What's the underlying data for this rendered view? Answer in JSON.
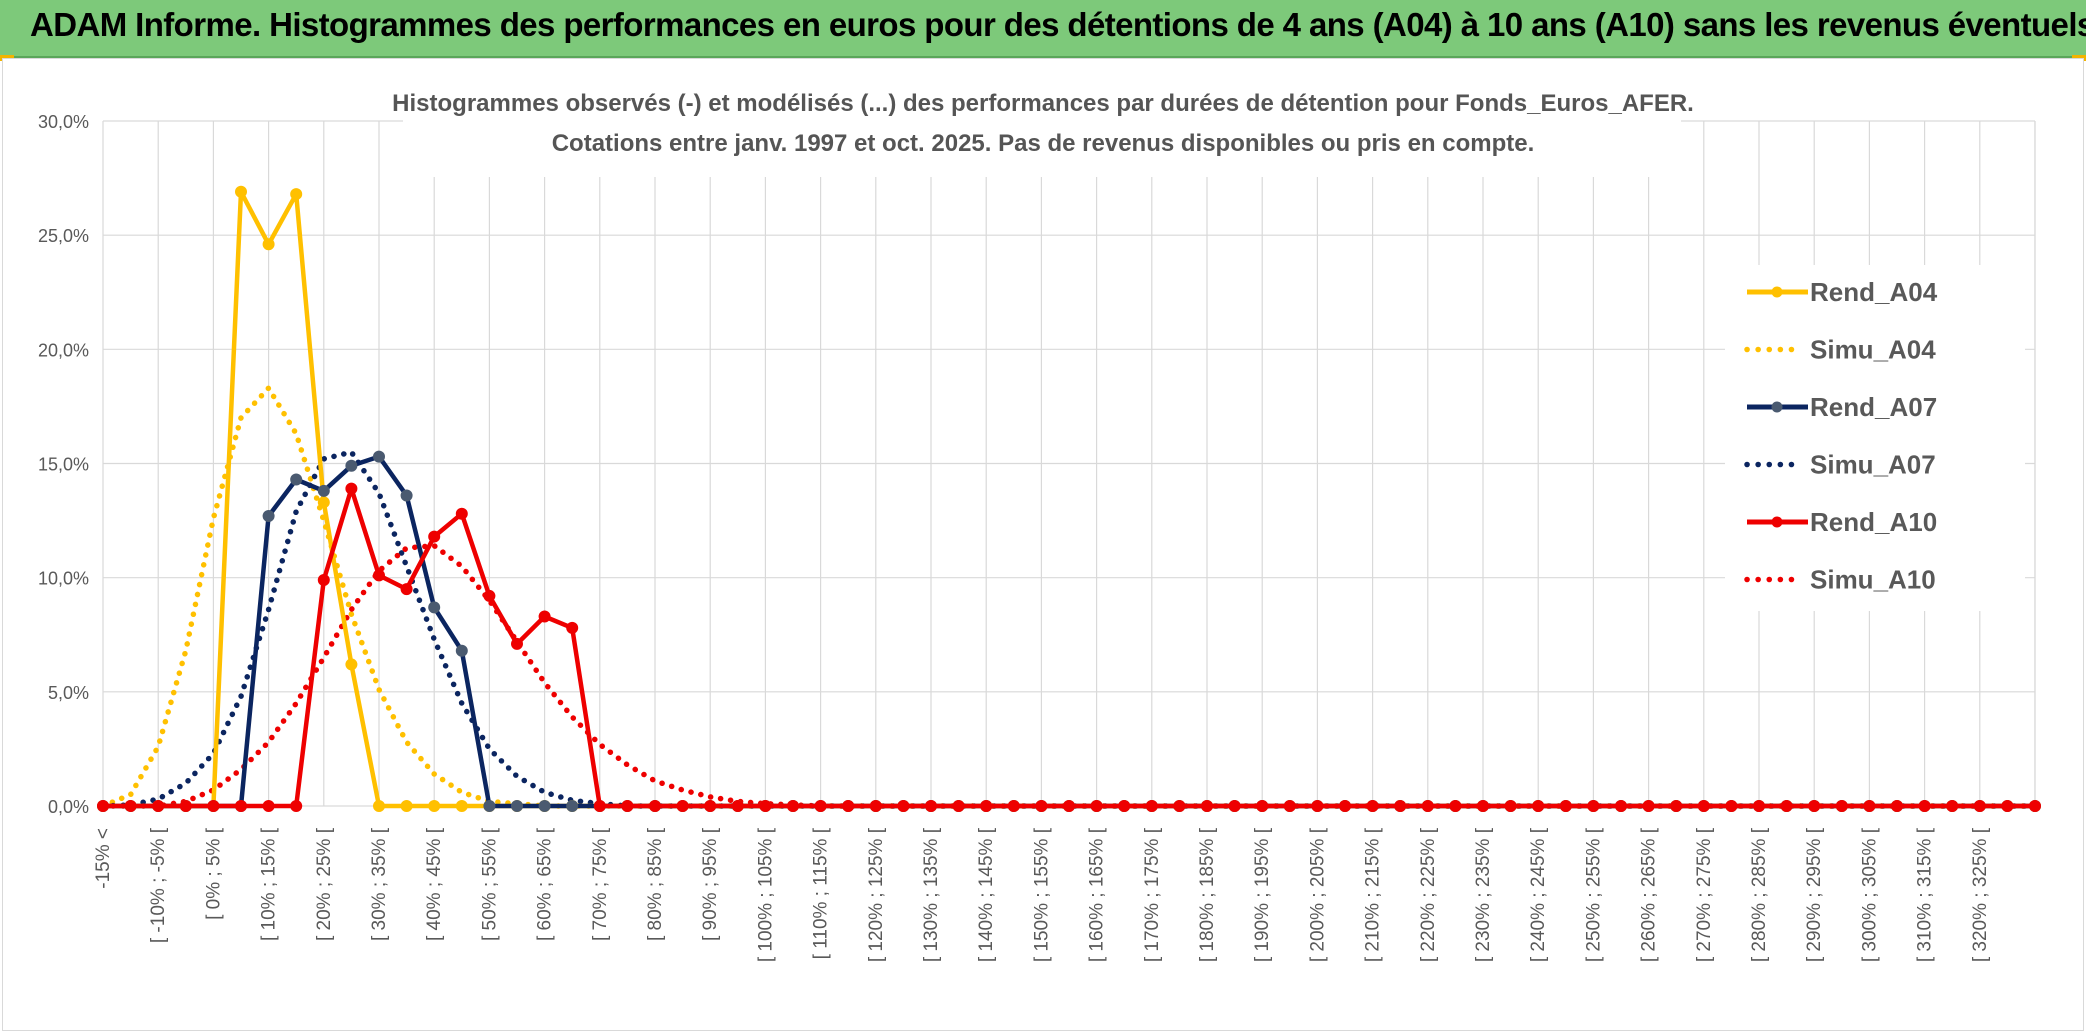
{
  "banner": {
    "title": "ADAM Informe. Histogrammes des performances en euros pour des détentions de 4 ans (A04) à 10 ans (A10) sans les revenus éventuels"
  },
  "colors": {
    "banner_bg": "#7dc97a",
    "gold": "#FFC000",
    "navy": "#0B2560",
    "red": "#EE0000",
    "navy_marker": "#4a5a70"
  },
  "chart_data": {
    "type": "line",
    "title": "Histogrammes observés (-) et modélisés (...) des performances par durées de détention pour Fonds_Euros_AFER.",
    "subtitle": "Cotations entre janv. 1997 et oct. 2025. Pas de revenus disponibles ou pris en compte.",
    "xlabel": "",
    "ylabel": "",
    "ylim": [
      0,
      30
    ],
    "yticks": [
      0,
      5,
      10,
      15,
      20,
      25,
      30
    ],
    "ytick_labels": [
      "0,0%",
      "5,0%",
      "10,0%",
      "15,0%",
      "20,0%",
      "25,0%",
      "30,0%"
    ],
    "grid": true,
    "legend_position": "right",
    "x": [
      "-15% <",
      "[ -15% ; -10% [",
      "[ -10% ; -5% [",
      "[ -5% ; 0% [",
      "[ 0% ; 5% [",
      "[ 5% ; 10% [",
      "[ 10% ; 15% [",
      "[ 15% ; 20% [",
      "[ 20% ; 25% [",
      "[ 25% ; 30% [",
      "[ 30% ; 35% [",
      "[ 35% ; 40% [",
      "[ 40% ; 45% [",
      "[ 45% ; 50% [",
      "[ 50% ; 55% [",
      "[ 55% ; 60% [",
      "[ 60% ; 65% [",
      "[ 65% ; 70% [",
      "[ 70% ; 75% [",
      "[ 75% ; 80% [",
      "[ 80% ; 85% [",
      "[ 85% ; 90% [",
      "[ 90% ; 95% [",
      "[ 95% ; 100% [",
      "[ 100% ; 105% [",
      "[ 105% ; 110% [",
      "[ 110% ; 115% [",
      "[ 115% ; 120% [",
      "[ 120% ; 125% [",
      "[ 125% ; 130% [",
      "[ 130% ; 135% [",
      "[ 135% ; 140% [",
      "[ 140% ; 145% [",
      "[ 145% ; 150% [",
      "[ 150% ; 155% [",
      "[ 155% ; 160% [",
      "[ 160% ; 165% [",
      "[ 165% ; 170% [",
      "[ 170% ; 175% [",
      "[ 175% ; 180% [",
      "[ 180% ; 185% [",
      "[ 185% ; 190% [",
      "[ 190% ; 195% [",
      "[ 195% ; 200% [",
      "[ 200% ; 205% [",
      "[ 205% ; 210% [",
      "[ 210% ; 215% [",
      "[ 215% ; 220% [",
      "[ 220% ; 225% [",
      "[ 225% ; 230% [",
      "[ 230% ; 235% [",
      "[ 235% ; 240% [",
      "[ 240% ; 245% [",
      "[ 245% ; 250% [",
      "[ 250% ; 255% [",
      "[ 255% ; 260% [",
      "[ 260% ; 265% [",
      "[ 265% ; 270% [",
      "[ 270% ; 275% [",
      "[ 275% ; 280% [",
      "[ 280% ; 285% [",
      "[ 285% ; 290% [",
      "[ 290% ; 295% [",
      "[ 295% ; 300% [",
      "[ 300% ; 305% [",
      "[ 305% ; 310% [",
      "[ 310% ; 315% [",
      "[ 315% ; 320% [",
      "[ 320% ; 325% [",
      "[ 325% ; 330% [",
      "> 330%"
    ],
    "shown_labels": [
      "-15% <",
      "[ -10% ; -5% [",
      "[ 0% ; 5% [",
      "[ 10% ; 15% [",
      "[ 20% ; 25% [",
      "[ 30% ; 35% [",
      "[ 40% ; 45% [",
      "[ 50% ; 55% [",
      "[ 60% ; 65% [",
      "[ 70% ; 75% [",
      "[ 80% ; 85% [",
      "[ 90% ; 95% [",
      "[ 100% ; 105% [",
      "[ 110% ; 115% [",
      "[ 120% ; 125% [",
      "[ 130% ; 135% [",
      "[ 140% ; 145% [",
      "[ 150% ; 155% [",
      "[ 160% ; 165% [",
      "[ 170% ; 175% [",
      "[ 180% ; 185% [",
      "[ 190% ; 195% [",
      "[ 200% ; 205% [",
      "[ 210% ; 215% [",
      "[ 220% ; 225% [",
      "[ 230% ; 235% [",
      "[ 240% ; 245% [",
      "[ 250% ; 255% [",
      "[ 260% ; 265% [",
      "[ 270% ; 275% [",
      "[ 280% ; 285% [",
      "[ 290% ; 295% [",
      "[ 300% ; 305% [",
      "[ 310% ; 315% [",
      "[ 320% ; 325% ["
    ],
    "series": [
      {
        "name": "Rend_A04",
        "style": "solid",
        "color": "#FFC000",
        "markers": true,
        "sparse": [
          [
            4,
            0
          ],
          [
            5,
            26.9
          ],
          [
            6,
            24.6
          ],
          [
            7,
            26.8
          ],
          [
            8,
            13.3
          ],
          [
            9,
            6.2
          ],
          [
            10,
            0
          ],
          [
            11,
            0
          ],
          [
            12,
            0
          ],
          [
            13,
            0
          ]
        ]
      },
      {
        "name": "Simu_A04",
        "style": "dotted",
        "color": "#FFC000",
        "markers": false,
        "sparse": [
          [
            0,
            0
          ],
          [
            1,
            0.5
          ],
          [
            2,
            2.6
          ],
          [
            3,
            6.8
          ],
          [
            4,
            12.6
          ],
          [
            5,
            17.0
          ],
          [
            6,
            18.3
          ],
          [
            7,
            16.3
          ],
          [
            8,
            12.5
          ],
          [
            9,
            8.4
          ],
          [
            10,
            5.1
          ],
          [
            11,
            2.8
          ],
          [
            12,
            1.4
          ],
          [
            13,
            0.6
          ],
          [
            14,
            0.2
          ],
          [
            15,
            0.1
          ]
        ]
      },
      {
        "name": "Rend_A07",
        "style": "solid",
        "color": "#0B2560",
        "markers": true,
        "sparse": [
          [
            5,
            0
          ],
          [
            6,
            12.7
          ],
          [
            7,
            14.3
          ],
          [
            8,
            13.8
          ],
          [
            9,
            14.9
          ],
          [
            10,
            15.3
          ],
          [
            11,
            13.6
          ],
          [
            12,
            8.7
          ],
          [
            13,
            6.8
          ],
          [
            14,
            0
          ],
          [
            15,
            0
          ],
          [
            16,
            0
          ],
          [
            17,
            0
          ]
        ]
      },
      {
        "name": "Simu_A07",
        "style": "dotted",
        "color": "#0B2560",
        "markers": false,
        "sparse": [
          [
            1,
            0.05
          ],
          [
            2,
            0.3
          ],
          [
            3,
            1.0
          ],
          [
            4,
            2.3
          ],
          [
            5,
            4.8
          ],
          [
            6,
            8.6
          ],
          [
            7,
            12.9
          ],
          [
            8,
            15.2
          ],
          [
            9,
            15.5
          ],
          [
            10,
            13.7
          ],
          [
            11,
            10.5
          ],
          [
            12,
            7.3
          ],
          [
            13,
            4.5
          ],
          [
            14,
            2.5
          ],
          [
            15,
            1.3
          ],
          [
            16,
            0.6
          ],
          [
            17,
            0.25
          ],
          [
            18,
            0.1
          ]
        ]
      },
      {
        "name": "Rend_A10",
        "style": "solid",
        "color": "#EE0000",
        "markers": true,
        "sparse": [
          [
            7,
            0
          ],
          [
            8,
            9.9
          ],
          [
            9,
            13.9
          ],
          [
            10,
            10.1
          ],
          [
            11,
            9.5
          ],
          [
            12,
            11.8
          ],
          [
            13,
            12.8
          ],
          [
            14,
            9.2
          ],
          [
            15,
            7.1
          ],
          [
            16,
            8.3
          ],
          [
            17,
            7.8
          ],
          [
            18,
            0
          ]
        ]
      },
      {
        "name": "Simu_A10",
        "style": "dotted",
        "color": "#EE0000",
        "markers": false,
        "sparse": [
          [
            3,
            0.2
          ],
          [
            4,
            0.7
          ],
          [
            5,
            1.6
          ],
          [
            6,
            2.8
          ],
          [
            7,
            4.5
          ],
          [
            8,
            6.5
          ],
          [
            9,
            8.6
          ],
          [
            10,
            10.3
          ],
          [
            11,
            11.3
          ],
          [
            12,
            11.4
          ],
          [
            13,
            10.5
          ],
          [
            14,
            9.0
          ],
          [
            15,
            7.2
          ],
          [
            16,
            5.4
          ],
          [
            17,
            3.9
          ],
          [
            18,
            2.7
          ],
          [
            19,
            1.8
          ],
          [
            20,
            1.1
          ],
          [
            21,
            0.7
          ],
          [
            22,
            0.4
          ],
          [
            23,
            0.2
          ],
          [
            24,
            0.1
          ],
          [
            25,
            0.05
          ]
        ]
      }
    ]
  }
}
